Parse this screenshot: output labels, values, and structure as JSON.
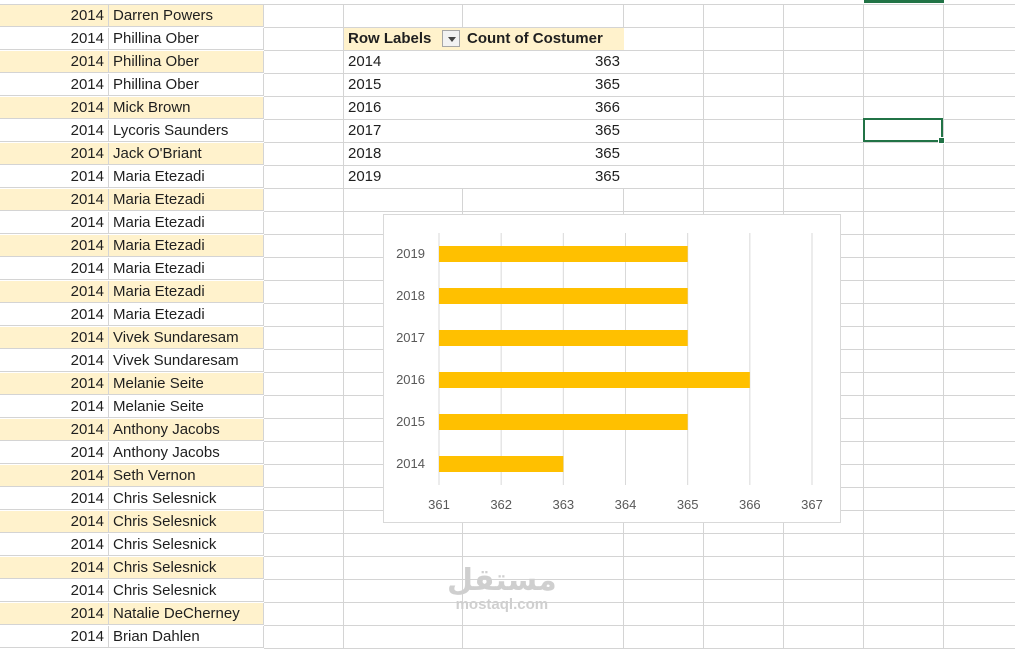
{
  "sheet_rows": [
    {
      "year": "2014",
      "name": "Darren Powers",
      "band": true
    },
    {
      "year": "2014",
      "name": "Phillina Ober",
      "band": false
    },
    {
      "year": "2014",
      "name": "Phillina Ober",
      "band": true
    },
    {
      "year": "2014",
      "name": "Phillina Ober",
      "band": false
    },
    {
      "year": "2014",
      "name": "Mick Brown",
      "band": true
    },
    {
      "year": "2014",
      "name": "Lycoris Saunders",
      "band": false
    },
    {
      "year": "2014",
      "name": "Jack O'Briant",
      "band": true
    },
    {
      "year": "2014",
      "name": "Maria Etezadi",
      "band": false
    },
    {
      "year": "2014",
      "name": "Maria Etezadi",
      "band": true
    },
    {
      "year": "2014",
      "name": "Maria Etezadi",
      "band": false
    },
    {
      "year": "2014",
      "name": "Maria Etezadi",
      "band": true
    },
    {
      "year": "2014",
      "name": "Maria Etezadi",
      "band": false
    },
    {
      "year": "2014",
      "name": "Maria Etezadi",
      "band": true
    },
    {
      "year": "2014",
      "name": "Maria Etezadi",
      "band": false
    },
    {
      "year": "2014",
      "name": "Vivek Sundaresam",
      "band": true
    },
    {
      "year": "2014",
      "name": "Vivek Sundaresam",
      "band": false
    },
    {
      "year": "2014",
      "name": "Melanie Seite",
      "band": true
    },
    {
      "year": "2014",
      "name": "Melanie Seite",
      "band": false
    },
    {
      "year": "2014",
      "name": "Anthony Jacobs",
      "band": true
    },
    {
      "year": "2014",
      "name": "Anthony Jacobs",
      "band": false
    },
    {
      "year": "2014",
      "name": "Seth Vernon",
      "band": true
    },
    {
      "year": "2014",
      "name": "Chris Selesnick",
      "band": false
    },
    {
      "year": "2014",
      "name": "Chris Selesnick",
      "band": true
    },
    {
      "year": "2014",
      "name": "Chris Selesnick",
      "band": false
    },
    {
      "year": "2014",
      "name": "Chris Selesnick",
      "band": true
    },
    {
      "year": "2014",
      "name": "Chris Selesnick",
      "band": false
    },
    {
      "year": "2014",
      "name": "Natalie DeCherney",
      "band": true
    },
    {
      "year": "2014",
      "name": "Brian Dahlen",
      "band": false
    }
  ],
  "pivot": {
    "header_row_labels": "Row Labels",
    "header_count": "Count of Costumer",
    "rows": [
      {
        "label": "2014",
        "value": "363"
      },
      {
        "label": "2015",
        "value": "365"
      },
      {
        "label": "2016",
        "value": "366"
      },
      {
        "label": "2017",
        "value": "365"
      },
      {
        "label": "2018",
        "value": "365"
      },
      {
        "label": "2019",
        "value": "365"
      }
    ]
  },
  "colors": {
    "accent": "#217346",
    "band": "#fff2cc",
    "bar": "#ffc000"
  },
  "chart_data": {
    "type": "bar",
    "orientation": "horizontal",
    "categories": [
      "2014",
      "2015",
      "2016",
      "2017",
      "2018",
      "2019"
    ],
    "values": [
      363,
      365,
      366,
      365,
      365,
      365
    ],
    "xlim": [
      361,
      367
    ],
    "xticks": [
      "361",
      "362",
      "363",
      "364",
      "365",
      "366",
      "367"
    ],
    "grid": true,
    "title": "",
    "xlabel": "",
    "ylabel": ""
  },
  "watermark": {
    "arabic": "مستقل",
    "latin": "mostaql.com"
  }
}
